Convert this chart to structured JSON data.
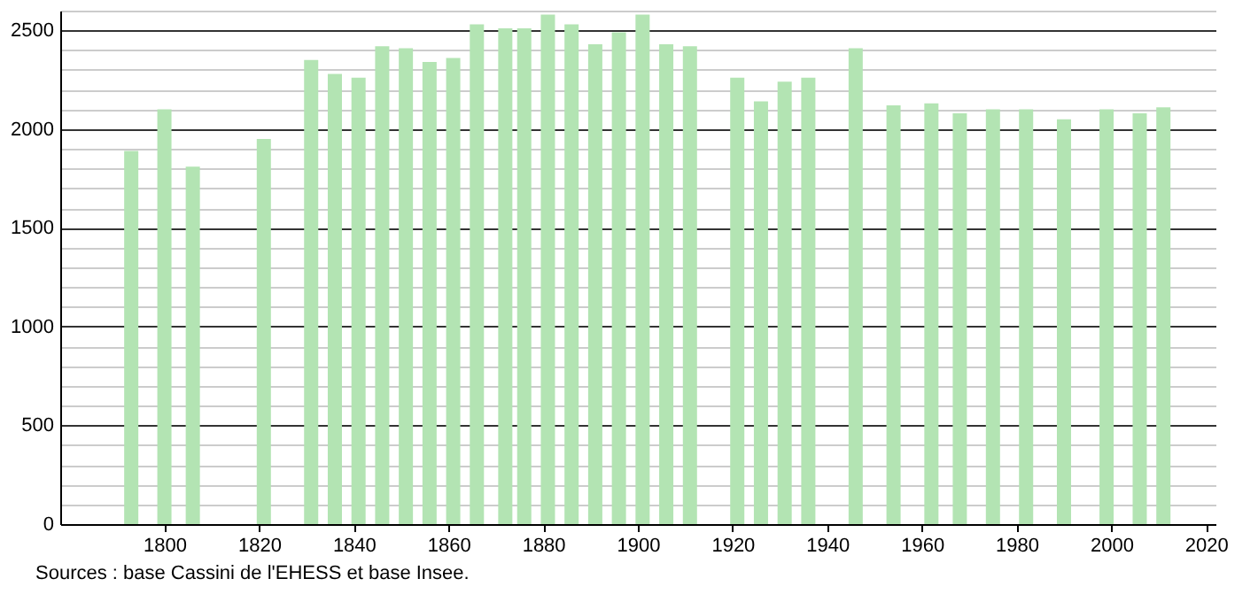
{
  "chart_data": {
    "type": "bar",
    "x": [
      1793,
      1800,
      1806,
      1821,
      1831,
      1836,
      1841,
      1846,
      1851,
      1856,
      1861,
      1866,
      1872,
      1876,
      1881,
      1886,
      1891,
      1896,
      1901,
      1906,
      1911,
      1921,
      1926,
      1931,
      1936,
      1946,
      1954,
      1962,
      1968,
      1975,
      1982,
      1990,
      1999,
      2006,
      2011
    ],
    "values": [
      1890,
      2100,
      1810,
      1950,
      2350,
      2280,
      2260,
      2420,
      2410,
      2340,
      2360,
      2530,
      2510,
      2510,
      2580,
      2530,
      2430,
      2490,
      2580,
      2430,
      2420,
      2260,
      2140,
      2240,
      2260,
      2410,
      2120,
      2130,
      2080,
      2100,
      2100,
      2050,
      2100,
      2080,
      2110
    ],
    "color": "#b3e4b3",
    "xlim": [
      1778,
      2022
    ],
    "xticks": [
      1800,
      1820,
      1840,
      1860,
      1880,
      1900,
      1920,
      1940,
      1960,
      1980,
      2000,
      2020
    ],
    "ylim": [
      0,
      2600
    ],
    "yticks": [
      0,
      {
        "value": 100,
        "label": null
      },
      {
        "value": 200,
        "label": null
      },
      {
        "value": 300,
        "label": null
      },
      {
        "value": 400,
        "label": null
      },
      500,
      {
        "value": 600,
        "label": null
      },
      {
        "value": 700,
        "label": null
      },
      {
        "value": 800,
        "label": null
      },
      {
        "value": 900,
        "label": null
      },
      1000,
      {
        "value": 1100,
        "label": null
      },
      {
        "value": 1200,
        "label": null
      },
      {
        "value": 1300,
        "label": null
      },
      {
        "value": 1400,
        "label": null
      },
      1500,
      {
        "value": 1600,
        "label": null
      },
      {
        "value": 1700,
        "label": null
      },
      {
        "value": 1800,
        "label": null
      },
      {
        "value": 1900,
        "label": null
      },
      2000,
      {
        "value": 2100,
        "label": null
      },
      {
        "value": 2200,
        "label": null
      },
      {
        "value": 2300,
        "label": null
      },
      {
        "value": 2400,
        "label": null
      },
      2500,
      {
        "value": 2600,
        "label": null
      }
    ],
    "grid": "y",
    "annotations": [
      "Sources : base Cassini de l'EHESS et base Insee."
    ]
  }
}
